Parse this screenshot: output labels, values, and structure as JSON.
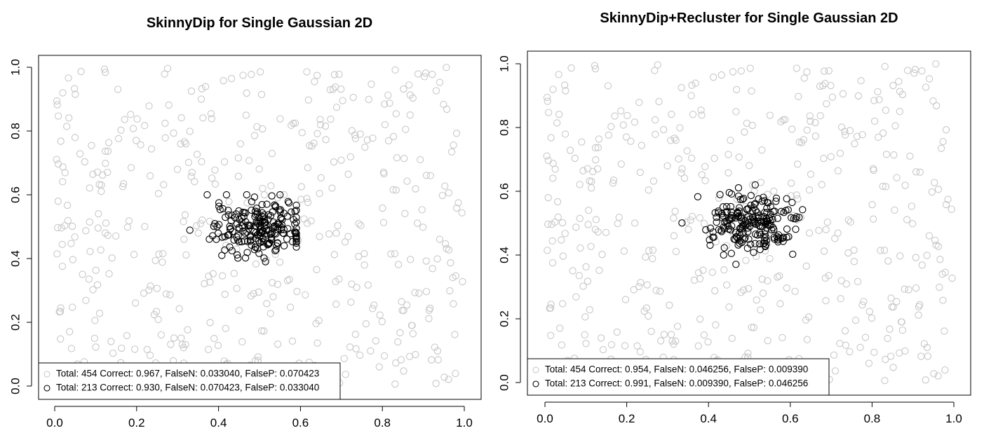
{
  "chart_data": [
    {
      "type": "scatter",
      "title": "SkinnyDip for Single Gaussian 2D",
      "xlabel": "",
      "ylabel": "",
      "xlim": [
        0,
        1
      ],
      "ylim": [
        0,
        1
      ],
      "x_ticks": [
        "0.0",
        "0.2",
        "0.4",
        "0.6",
        "0.8",
        "1.0"
      ],
      "y_ticks": [
        "0.0",
        "0.2",
        "0.4",
        "0.6",
        "0.8",
        "1.0"
      ],
      "grid": false,
      "legend_position": "bottom-left",
      "series": [
        {
          "name": "Total: 454 Correct: 0.967, FalseN: 0.033040, FalseP: 0.070423",
          "color": "#c8c8c8",
          "count": 454,
          "distribution": "uniform noise over [0,1] x [0,1]"
        },
        {
          "name": "Total: 213 Correct: 0.930, FalseN: 0.070423, FalseP: 0.033040",
          "color": "#000000",
          "count": 213,
          "distribution": "gaussian cluster",
          "center": [
            0.5,
            0.5
          ],
          "x_range": [
            0.33,
            0.59
          ],
          "y_range": [
            0.39,
            0.6
          ]
        }
      ]
    },
    {
      "type": "scatter",
      "title": "SkinnyDip+Recluster for Single Gaussian 2D",
      "xlabel": "",
      "ylabel": "",
      "xlim": [
        0,
        1
      ],
      "ylim": [
        0,
        1
      ],
      "x_ticks": [
        "0.0",
        "0.2",
        "0.4",
        "0.6",
        "0.8",
        "1.0"
      ],
      "y_ticks": [
        "0.0",
        "0.2",
        "0.4",
        "0.6",
        "0.8",
        "1.0"
      ],
      "grid": false,
      "legend_position": "bottom-left",
      "series": [
        {
          "name": "Total: 454 Correct: 0.954, FalseN: 0.046256, FalseP: 0.009390",
          "color": "#c8c8c8",
          "count": 454,
          "distribution": "uniform noise over [0,1] x [0,1]"
        },
        {
          "name": "Total: 213 Correct: 0.991, FalseN: 0.009390, FalseP: 0.046256",
          "color": "#000000",
          "count": 213,
          "distribution": "gaussian cluster",
          "center": [
            0.5,
            0.5
          ],
          "x_range": [
            0.33,
            0.63
          ],
          "y_range": [
            0.36,
            0.62
          ]
        }
      ]
    }
  ]
}
